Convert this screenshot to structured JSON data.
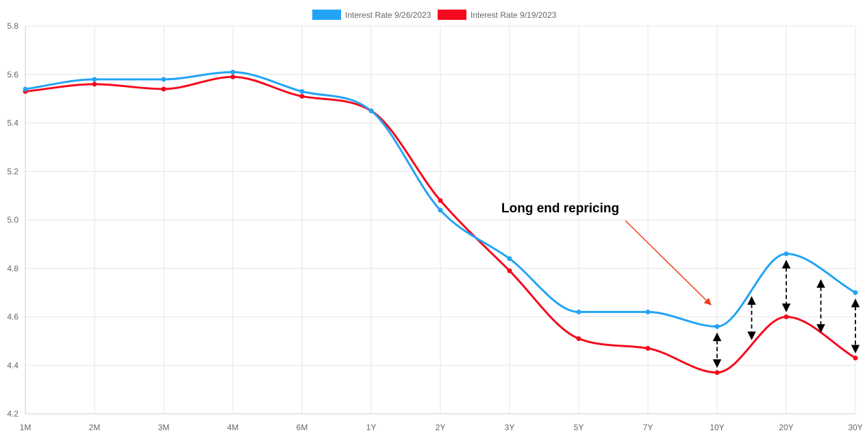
{
  "chart_data": {
    "type": "line",
    "title": "",
    "xlabel": "",
    "ylabel": "",
    "categories": [
      "1M",
      "2M",
      "3M",
      "4M",
      "6M",
      "1Y",
      "2Y",
      "3Y",
      "5Y",
      "7Y",
      "10Y",
      "20Y",
      "30Y"
    ],
    "ylim": [
      4.2,
      5.8
    ],
    "yticks": [
      "4.2",
      "4.4",
      "4.6",
      "4.8",
      "5.0",
      "5.2",
      "5.4",
      "5.6",
      "5.8"
    ],
    "grid": true,
    "legend_position": "top-center",
    "series": [
      {
        "name": "Interest Rate 9/26/2023",
        "color": "#22a4f5",
        "values": [
          5.54,
          5.58,
          5.58,
          5.61,
          5.53,
          5.45,
          5.04,
          4.84,
          4.62,
          4.62,
          4.56,
          4.86,
          4.7
        ]
      },
      {
        "name": "Interest Rate 9/19/2023",
        "color": "#f5091d",
        "values": [
          5.53,
          5.56,
          5.54,
          5.59,
          5.51,
          5.45,
          5.08,
          4.79,
          4.51,
          4.47,
          4.37,
          4.6,
          4.43
        ]
      }
    ],
    "annotations": [
      {
        "text": "Long end repricing",
        "arrow_color": "#f03c1e",
        "points_to_category": "10Y"
      }
    ]
  }
}
